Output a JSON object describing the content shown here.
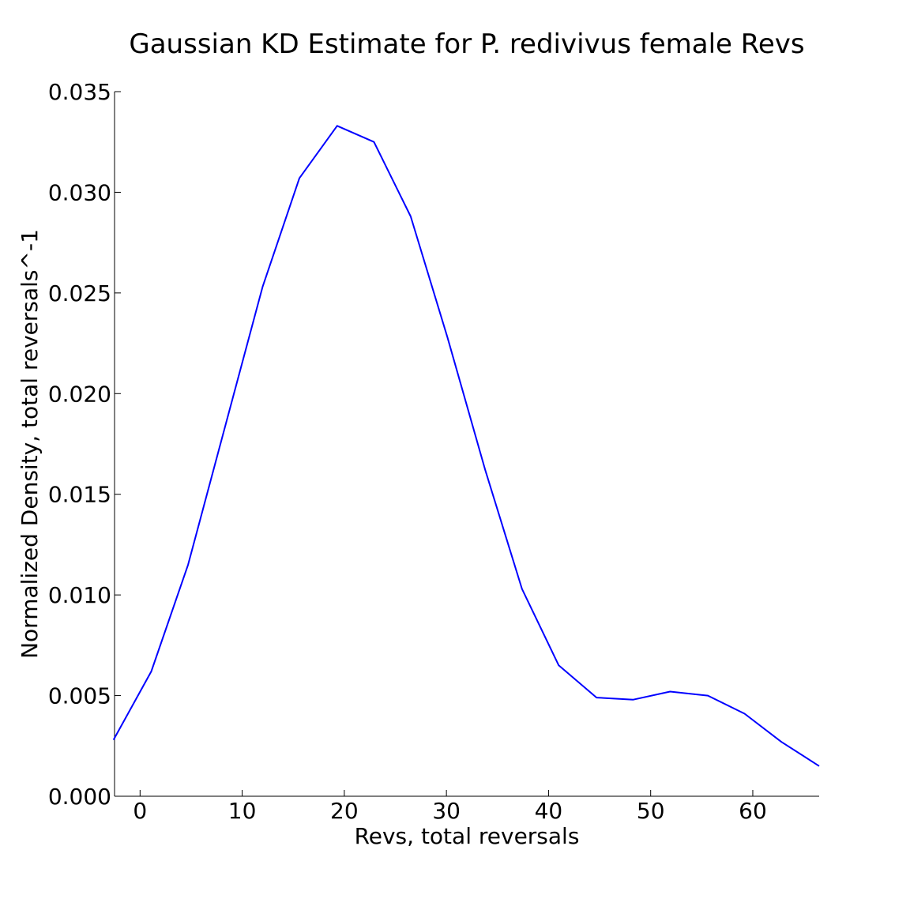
{
  "chart_data": {
    "type": "line",
    "title": "Gaussian KD Estimate for P. redivivus female Revs",
    "xlabel": "Revs, total reversals",
    "ylabel": "Normalized Density, total reversals^-1",
    "xlim": [
      -2.5,
      66.5
    ],
    "ylim": [
      0.0,
      0.035
    ],
    "xticks": [
      0,
      10,
      20,
      30,
      40,
      50,
      60
    ],
    "xtick_labels": [
      "0",
      "10",
      "20",
      "30",
      "40",
      "50",
      "60"
    ],
    "yticks": [
      0.0,
      0.005,
      0.01,
      0.015,
      0.02,
      0.025,
      0.03,
      0.035
    ],
    "ytick_labels": [
      "0.000",
      "0.005",
      "0.010",
      "0.015",
      "0.020",
      "0.025",
      "0.030",
      "0.035"
    ],
    "grid": false,
    "line_color": "#0000ff",
    "series": [
      {
        "x": [
          -2.6,
          1.1,
          4.7,
          8.4,
          12.0,
          15.6,
          19.3,
          22.9,
          26.5,
          30.1,
          33.8,
          37.4,
          41.0,
          44.7,
          48.3,
          51.9,
          55.6,
          59.2,
          62.8,
          66.5
        ],
        "y": [
          0.0028,
          0.0062,
          0.0115,
          0.0185,
          0.0253,
          0.0307,
          0.0333,
          0.0325,
          0.0288,
          0.0228,
          0.0162,
          0.0103,
          0.0065,
          0.0049,
          0.0048,
          0.0052,
          0.005,
          0.0041,
          0.0027,
          0.0015
        ]
      }
    ]
  }
}
